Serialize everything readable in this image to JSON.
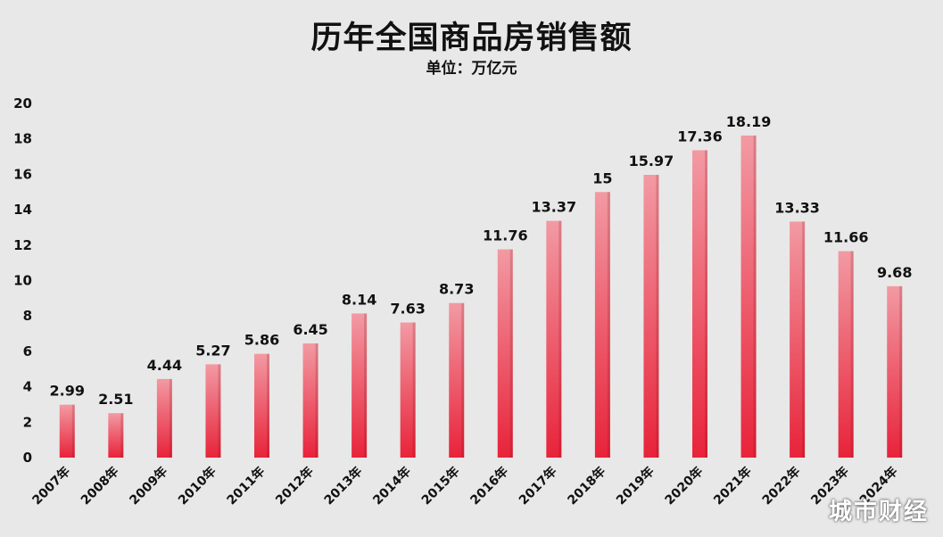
{
  "chart_data": {
    "type": "bar",
    "title": "历年全国商品房销售额",
    "subtitle": "单位：万亿元",
    "categories": [
      "2007年",
      "2008年",
      "2009年",
      "2010年",
      "2011年",
      "2012年",
      "2013年",
      "2014年",
      "2015年",
      "2016年",
      "2017年",
      "2018年",
      "2019年",
      "2020年",
      "2021年",
      "2022年",
      "2023年",
      "2024年"
    ],
    "series": [
      {
        "values": [
          2.99,
          2.51,
          4.44,
          5.27,
          5.86,
          6.45,
          8.14,
          7.63,
          8.73,
          11.76,
          13.37,
          15,
          15.97,
          17.36,
          18.19,
          13.33,
          11.66,
          9.68
        ],
        "labels": [
          "2.99",
          "2.51",
          "4.44",
          "5.27",
          "5.86",
          "6.45",
          "8.14",
          "7.63",
          "8.73",
          "11.76",
          "13.37",
          "15",
          "15.97",
          "17.36",
          "18.19",
          "13.33",
          "11.66",
          "9.68"
        ]
      }
    ],
    "ylim": [
      0,
      20
    ],
    "yticks": [
      0,
      2,
      4,
      6,
      8,
      10,
      12,
      14,
      16,
      18,
      20
    ],
    "grid": false,
    "legend": "none",
    "colors": {
      "bar_top": "#f29aa3",
      "bar_bottom": "#e8233a",
      "background": "#e8e8e8"
    }
  },
  "watermark": "城市财经"
}
